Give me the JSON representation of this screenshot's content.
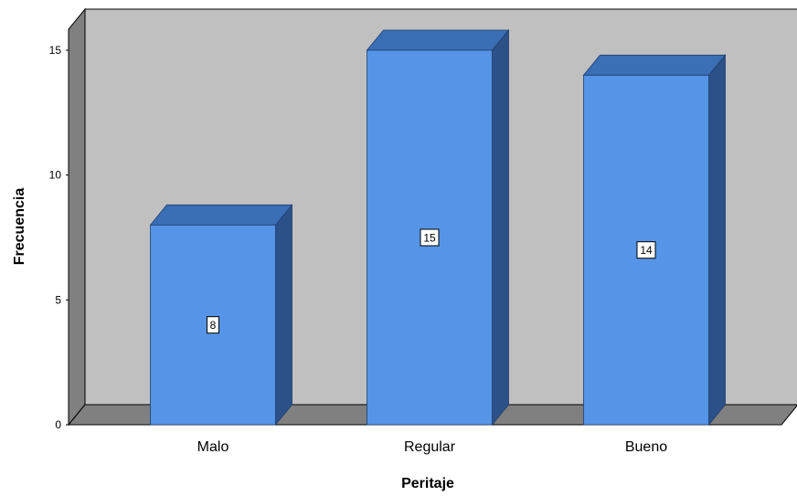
{
  "chart_data": {
    "type": "bar",
    "style": "3d",
    "categories": [
      "Malo",
      "Regular",
      "Bueno"
    ],
    "values": [
      8,
      15,
      14
    ],
    "data_labels": [
      "8",
      "15",
      "14"
    ],
    "xlabel": "Peritaje",
    "ylabel": "Frecuencia",
    "ylim": [
      0,
      15
    ],
    "yticks": [
      "0",
      "5",
      "10",
      "15"
    ],
    "grid": false,
    "colors": {
      "bar_front": "#5594e6",
      "bar_top": "#3a6eb5",
      "bar_side": "#2c5088",
      "back_wall": "#c0c0c0",
      "left_wall": "#808080",
      "floor": "#808080"
    }
  }
}
